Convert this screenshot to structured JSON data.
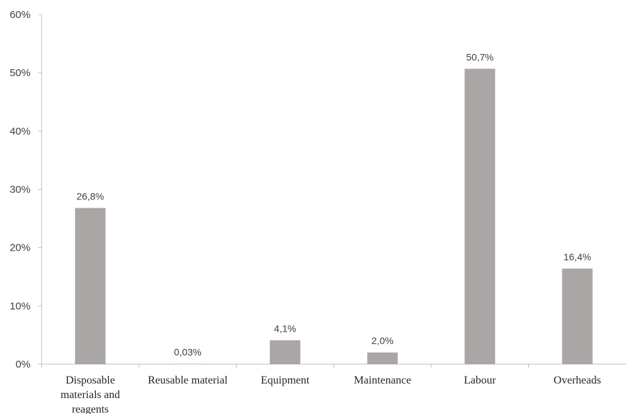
{
  "chart_data": {
    "type": "bar",
    "categories": [
      [
        "Disposable",
        "materials and",
        "reagents"
      ],
      [
        "Reusable material"
      ],
      [
        "Equipment"
      ],
      [
        "Maintenance"
      ],
      [
        "Labour"
      ],
      [
        "Overheads"
      ]
    ],
    "values": [
      26.8,
      0.03,
      4.1,
      2.0,
      50.7,
      16.4
    ],
    "data_labels": [
      "26,8%",
      "0,03%",
      "4,1%",
      "2,0%",
      "50,7%",
      "16,4%"
    ],
    "y_ticks": [
      0,
      10,
      20,
      30,
      40,
      50,
      60
    ],
    "y_tick_labels": [
      "0%",
      "10%",
      "20%",
      "30%",
      "40%",
      "50%",
      "60%"
    ],
    "ylim": [
      0,
      60
    ],
    "grid": false,
    "legend": "none",
    "bar_color": "#a9a6a5",
    "axis_color": "#bfbfbf"
  }
}
